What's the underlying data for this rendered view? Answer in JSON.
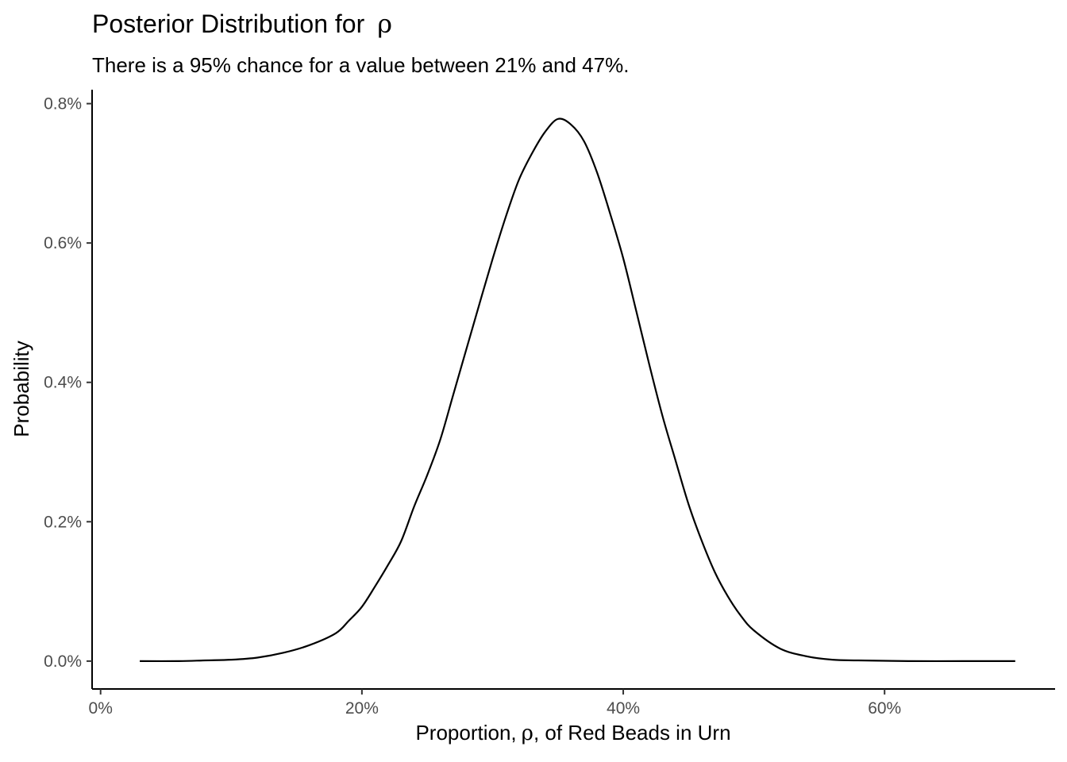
{
  "chart_data": {
    "type": "line",
    "title": "Posterior Distribution for",
    "title_symbol": "ρ",
    "subtitle": "There is a 95% chance for a value between 21% and 47%.",
    "xlabel_before": "Proportion,",
    "xlabel_symbol": "ρ",
    "xlabel_after": ", of Red Beads in Urn",
    "ylabel": "Probability",
    "x_tick_labels": [
      "0%",
      "20%",
      "40%",
      "60%"
    ],
    "x_tick_values": [
      0,
      0.2,
      0.4,
      0.6
    ],
    "y_tick_labels": [
      "0.0%",
      "0.2%",
      "0.4%",
      "0.6%",
      "0.8%"
    ],
    "y_tick_values": [
      0,
      0.002,
      0.004,
      0.006,
      0.008
    ],
    "xlim": [
      -0.0065,
      0.7305
    ],
    "ylim": [
      -0.0004,
      0.0082
    ],
    "grid": false,
    "line_color": "#000000",
    "series": [
      {
        "x": [
          0.03,
          0.06,
          0.08,
          0.1,
          0.12,
          0.14,
          0.16,
          0.18,
          0.19,
          0.2,
          0.21,
          0.22,
          0.23,
          0.24,
          0.25,
          0.26,
          0.27,
          0.28,
          0.29,
          0.3,
          0.31,
          0.32,
          0.33,
          0.34,
          0.35,
          0.36,
          0.37,
          0.38,
          0.39,
          0.4,
          0.41,
          0.42,
          0.43,
          0.44,
          0.45,
          0.46,
          0.47,
          0.48,
          0.49,
          0.5,
          0.52,
          0.54,
          0.56,
          0.58,
          0.62,
          0.66,
          0.7
        ],
        "y": [
          0.0,
          0.0,
          1e-05,
          2e-05,
          5e-05,
          0.00012,
          0.00023,
          0.0004,
          0.00058,
          0.00078,
          0.00107,
          0.00138,
          0.00172,
          0.00222,
          0.00267,
          0.00318,
          0.00383,
          0.00448,
          0.00513,
          0.00577,
          0.00637,
          0.0069,
          0.00728,
          0.00759,
          0.00778,
          0.0077,
          0.00746,
          0.00701,
          0.00642,
          0.00578,
          0.00502,
          0.00425,
          0.00352,
          0.00288,
          0.00225,
          0.00173,
          0.00128,
          0.00093,
          0.00065,
          0.00044,
          0.00018,
          7e-05,
          2e-05,
          1e-05,
          0.0,
          0.0,
          0.0
        ]
      }
    ]
  }
}
